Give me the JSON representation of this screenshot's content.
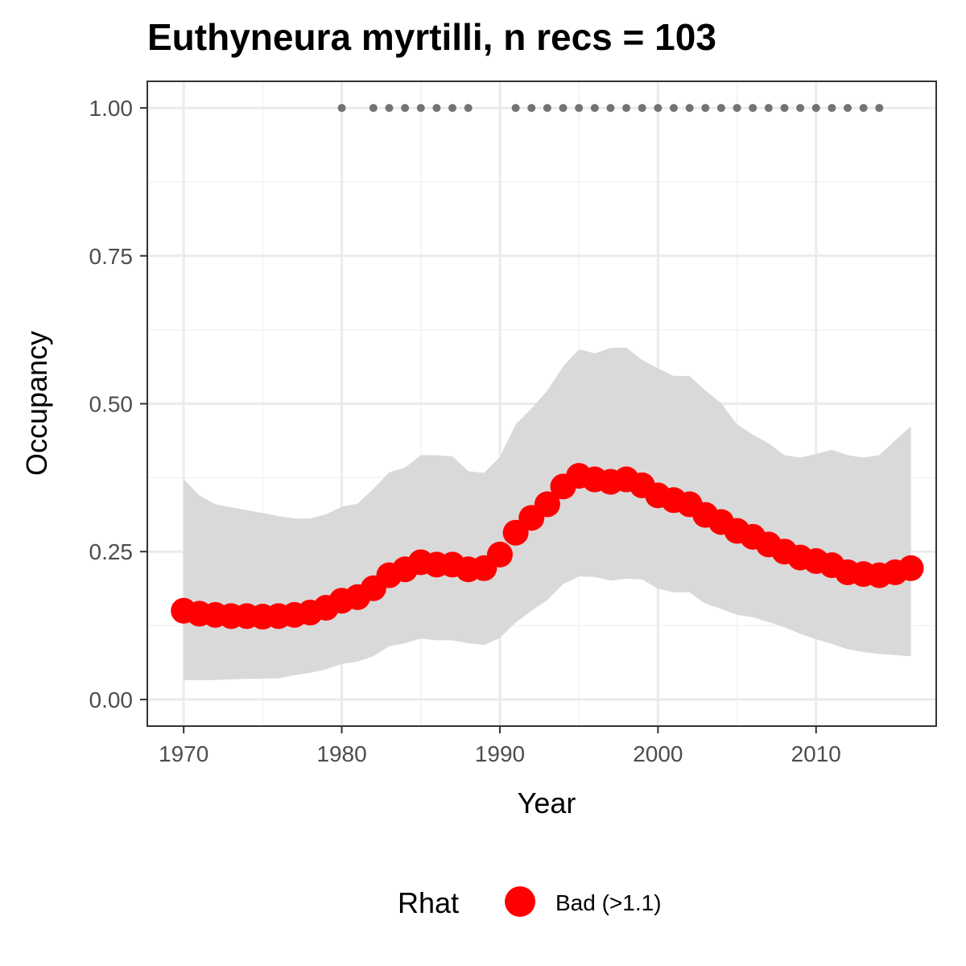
{
  "chart_data": {
    "type": "line",
    "title": "Euthyneura myrtilli, n recs = 103",
    "xlabel": "Year",
    "ylabel": "Occupancy",
    "xlim": [
      1967.7,
      2017.6
    ],
    "ylim": [
      -0.045,
      1.045
    ],
    "x_ticks": [
      1970,
      1980,
      1990,
      2000,
      2010
    ],
    "x_tick_labels": [
      "1970",
      "1980",
      "1990",
      "2000",
      "2010"
    ],
    "y_ticks": [
      0,
      0.25,
      0.5,
      0.75,
      1.0
    ],
    "y_tick_labels": [
      "0.00",
      "0.25",
      "0.50",
      "0.75",
      "1.00"
    ],
    "grid": true,
    "x": [
      1970,
      1971,
      1972,
      1973,
      1974,
      1975,
      1976,
      1977,
      1978,
      1979,
      1980,
      1981,
      1982,
      1983,
      1984,
      1985,
      1986,
      1987,
      1988,
      1989,
      1990,
      1991,
      1992,
      1993,
      1994,
      1995,
      1996,
      1997,
      1998,
      1999,
      2000,
      2001,
      2002,
      2003,
      2004,
      2005,
      2006,
      2007,
      2008,
      2009,
      2010,
      2011,
      2012,
      2013,
      2014,
      2015,
      2016
    ],
    "series": [
      {
        "name": "Bad (>1.1)",
        "color": "#ff0000",
        "values": [
          0.15,
          0.145,
          0.143,
          0.141,
          0.141,
          0.14,
          0.141,
          0.143,
          0.147,
          0.155,
          0.167,
          0.173,
          0.188,
          0.21,
          0.22,
          0.232,
          0.228,
          0.228,
          0.22,
          0.222,
          0.245,
          0.282,
          0.307,
          0.33,
          0.36,
          0.378,
          0.372,
          0.368,
          0.372,
          0.362,
          0.345,
          0.337,
          0.33,
          0.312,
          0.3,
          0.285,
          0.275,
          0.262,
          0.25,
          0.24,
          0.234,
          0.227,
          0.215,
          0.212,
          0.21,
          0.215,
          0.222
        ]
      }
    ],
    "ci_upper": [
      0.372,
      0.345,
      0.33,
      0.325,
      0.32,
      0.315,
      0.31,
      0.306,
      0.306,
      0.313,
      0.326,
      0.331,
      0.356,
      0.384,
      0.392,
      0.413,
      0.413,
      0.411,
      0.386,
      0.383,
      0.41,
      0.465,
      0.492,
      0.522,
      0.563,
      0.592,
      0.585,
      0.594,
      0.595,
      0.574,
      0.56,
      0.547,
      0.547,
      0.522,
      0.501,
      0.465,
      0.448,
      0.433,
      0.413,
      0.409,
      0.415,
      0.422,
      0.413,
      0.409,
      0.413,
      0.438,
      0.462
    ],
    "ci_lower": [
      0.033,
      0.033,
      0.033,
      0.034,
      0.035,
      0.035,
      0.036,
      0.041,
      0.045,
      0.051,
      0.06,
      0.064,
      0.073,
      0.09,
      0.095,
      0.103,
      0.1,
      0.1,
      0.095,
      0.092,
      0.104,
      0.13,
      0.15,
      0.168,
      0.195,
      0.208,
      0.207,
      0.201,
      0.204,
      0.203,
      0.187,
      0.181,
      0.181,
      0.162,
      0.153,
      0.143,
      0.139,
      0.131,
      0.122,
      0.111,
      0.102,
      0.094,
      0.085,
      0.08,
      0.077,
      0.075,
      0.073
    ],
    "ci_color": "#d9d9d9",
    "records_y": 1.0,
    "records_color": "#737373",
    "record_years": [
      1980,
      1982,
      1983,
      1984,
      1985,
      1986,
      1987,
      1988,
      1991,
      1992,
      1993,
      1994,
      1995,
      1996,
      1997,
      1998,
      1999,
      2000,
      2001,
      2002,
      2003,
      2004,
      2005,
      2006,
      2007,
      2008,
      2009,
      2010,
      2011,
      2012,
      2013,
      2014
    ],
    "legend_title": "Rhat",
    "legend_placement": "bottom"
  }
}
